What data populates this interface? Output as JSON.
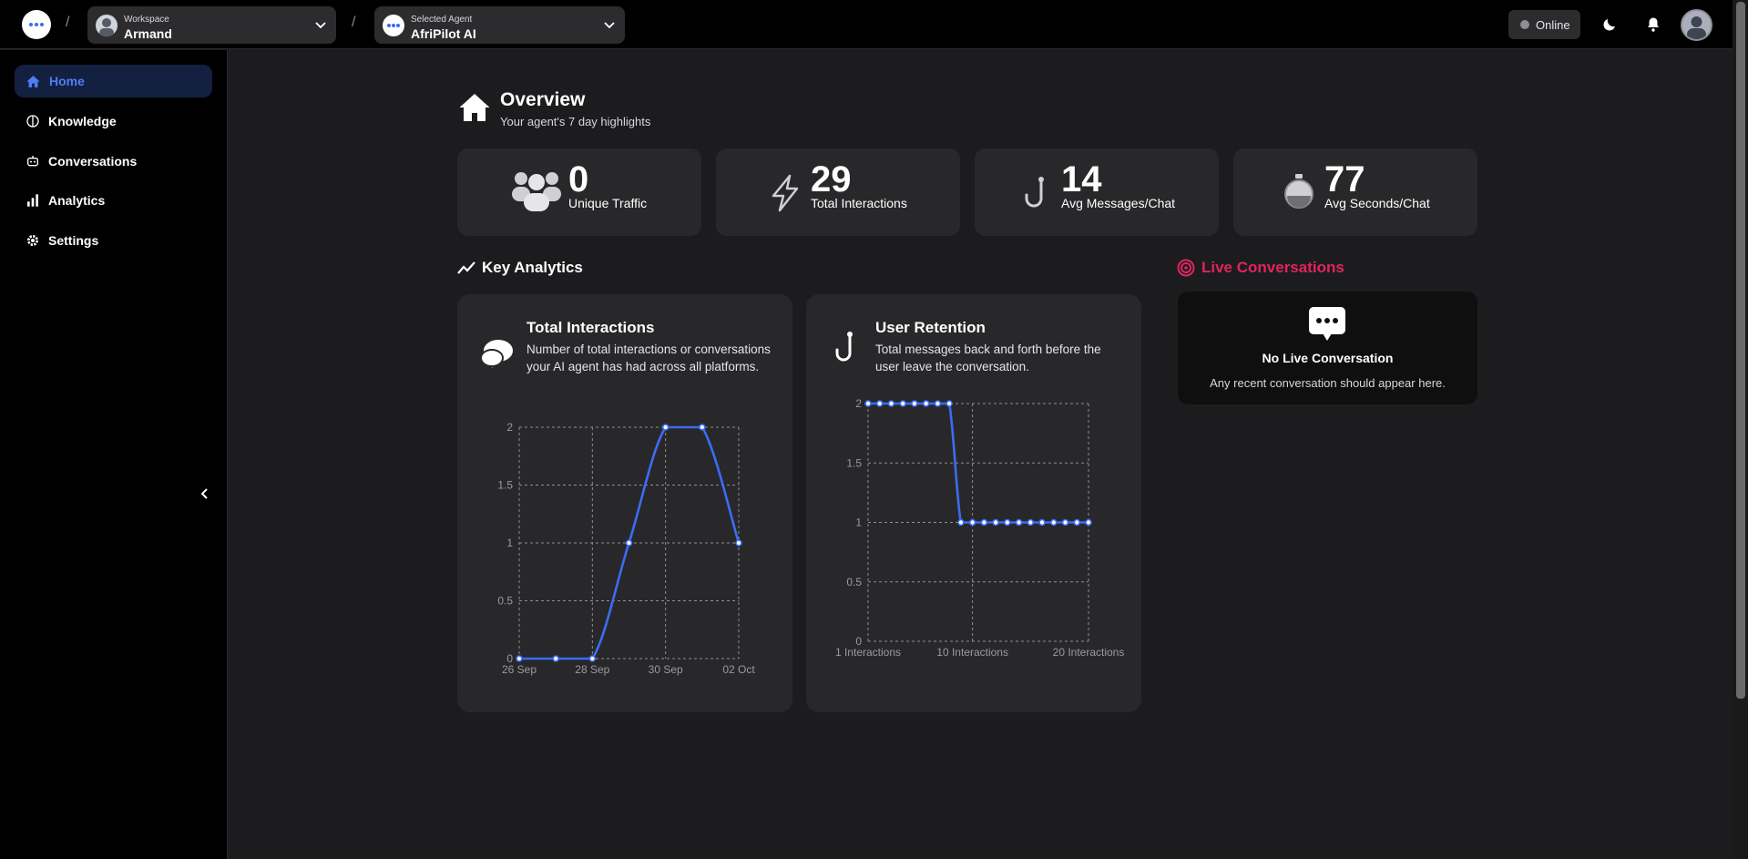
{
  "topbar": {
    "workspace": {
      "caption": "Workspace",
      "name": "Armand"
    },
    "agent": {
      "caption": "Selected Agent",
      "name": "AfriPilot AI"
    },
    "separator": "/",
    "status": "Online"
  },
  "sidebar": {
    "items": [
      {
        "label": "Home",
        "icon": "home-icon",
        "active": true
      },
      {
        "label": "Knowledge",
        "icon": "knowledge-icon",
        "active": false
      },
      {
        "label": "Conversations",
        "icon": "bot-icon",
        "active": false
      },
      {
        "label": "Analytics",
        "icon": "bar-chart-icon",
        "active": false
      },
      {
        "label": "Settings",
        "icon": "gear-icon",
        "active": false
      }
    ]
  },
  "overview": {
    "title": "Overview",
    "subtitle": "Your agent's 7 day highlights"
  },
  "stats": [
    {
      "value": "0",
      "label": "Unique Traffic",
      "icon": "users-icon"
    },
    {
      "value": "29",
      "label": "Total Interactions",
      "icon": "bolt-icon"
    },
    {
      "value": "14",
      "label": "Avg Messages/Chat",
      "icon": "hook-icon"
    },
    {
      "value": "77",
      "label": "Avg Seconds/Chat",
      "icon": "stopwatch-icon"
    }
  ],
  "key_analytics": {
    "title": "Key Analytics"
  },
  "cards": {
    "interactions": {
      "title": "Total Interactions",
      "description": "Number of total interactions or conversations your AI agent has had across all platforms."
    },
    "retention": {
      "title": "User Retention",
      "description": "Total messages back and forth before the user leave the conversation."
    }
  },
  "live": {
    "title": "Live Conversations",
    "empty_title": "No Live Conversation",
    "empty_sub": "Any recent conversation should appear here."
  },
  "chart_data": [
    {
      "type": "line",
      "x": [
        "26 Sep",
        "27 Sep",
        "28 Sep",
        "29 Sep",
        "30 Sep",
        "01 Oct",
        "02 Oct"
      ],
      "tick_labels_x": [
        "26 Sep",
        "28 Sep",
        "30 Sep",
        "02 Oct"
      ],
      "values": [
        0,
        0,
        0,
        1,
        2,
        2,
        1
      ],
      "ylim": [
        0,
        2
      ],
      "yticks": [
        "0",
        "0.5",
        "1",
        "1.5",
        "2"
      ],
      "grid": true,
      "color": "#3b6cf4"
    },
    {
      "type": "line",
      "x": [
        1,
        2,
        3,
        4,
        5,
        6,
        7,
        8,
        9,
        10,
        11,
        12,
        13,
        14,
        15,
        16,
        17,
        18,
        19,
        20
      ],
      "tick_labels_x": [
        "1 Interactions",
        "10 Interactions",
        "20 Interactions"
      ],
      "values": [
        2,
        2,
        2,
        2,
        2,
        2,
        2,
        2,
        1,
        1,
        1,
        1,
        1,
        1,
        1,
        1,
        1,
        1,
        1,
        1
      ],
      "ylim": [
        0,
        2
      ],
      "yticks": [
        "0",
        "0.5",
        "1",
        "1.5",
        "2"
      ],
      "grid": true,
      "color": "#3b6cf4"
    }
  ]
}
